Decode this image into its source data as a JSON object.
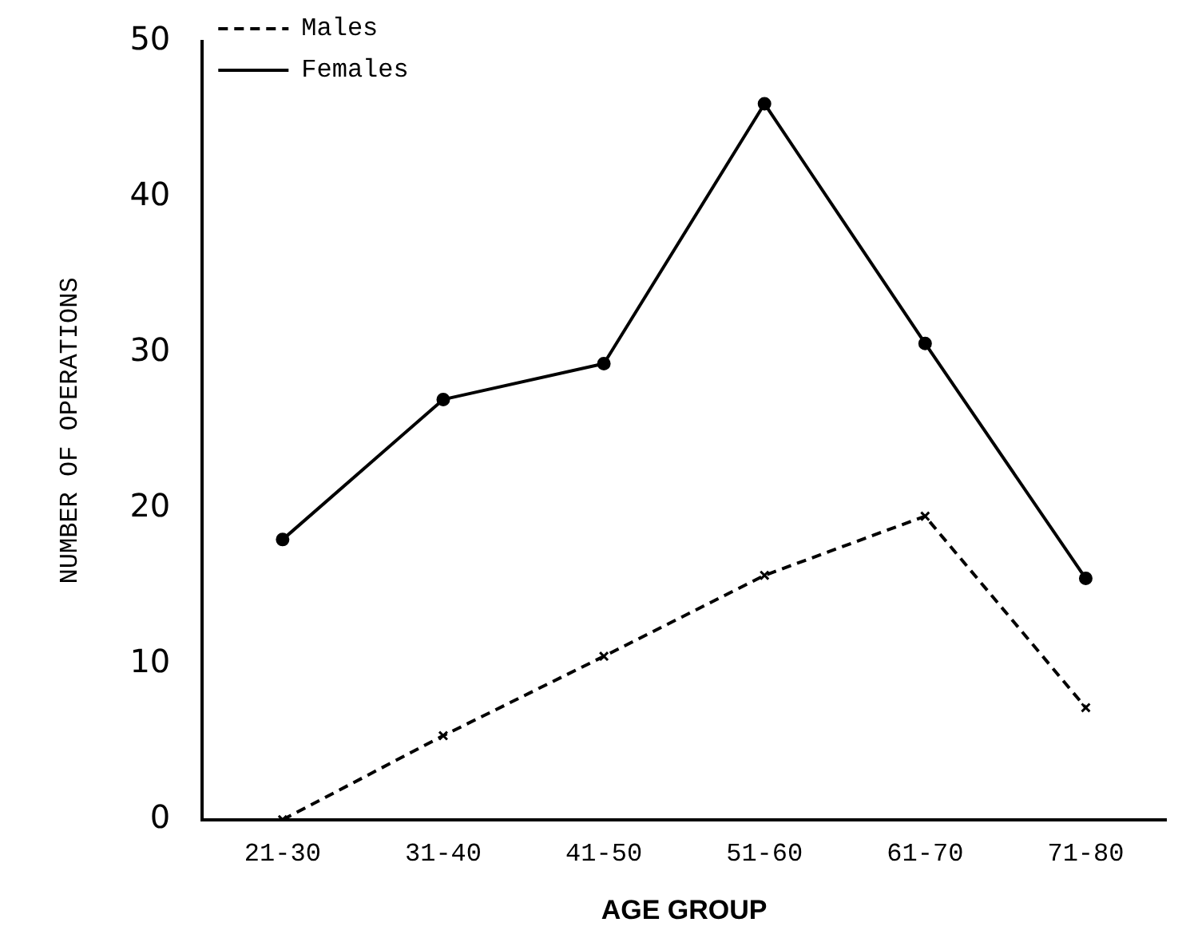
{
  "chart_data": {
    "type": "line",
    "xlabel": "AGE GROUP",
    "ylabel": "NUMBER OF OPERATIONS",
    "categories": [
      "21-30",
      "31-40",
      "41-50",
      "51-60",
      "61-70",
      "71-80"
    ],
    "series": [
      {
        "name": "Males",
        "color": "#000000",
        "values": [
          0,
          5.4,
          10.5,
          15.7,
          19.5,
          7.2
        ],
        "line_style": "dashed",
        "marker": "cross"
      },
      {
        "name": "Females",
        "color": "#000000",
        "values": [
          18,
          27,
          29.3,
          46,
          30.6,
          15.5
        ],
        "line_style": "solid",
        "marker": "circle"
      }
    ],
    "ylim": [
      0,
      50
    ],
    "yticks": [
      0,
      10,
      20,
      30,
      40,
      50
    ],
    "grid": false,
    "legend": "top left"
  }
}
